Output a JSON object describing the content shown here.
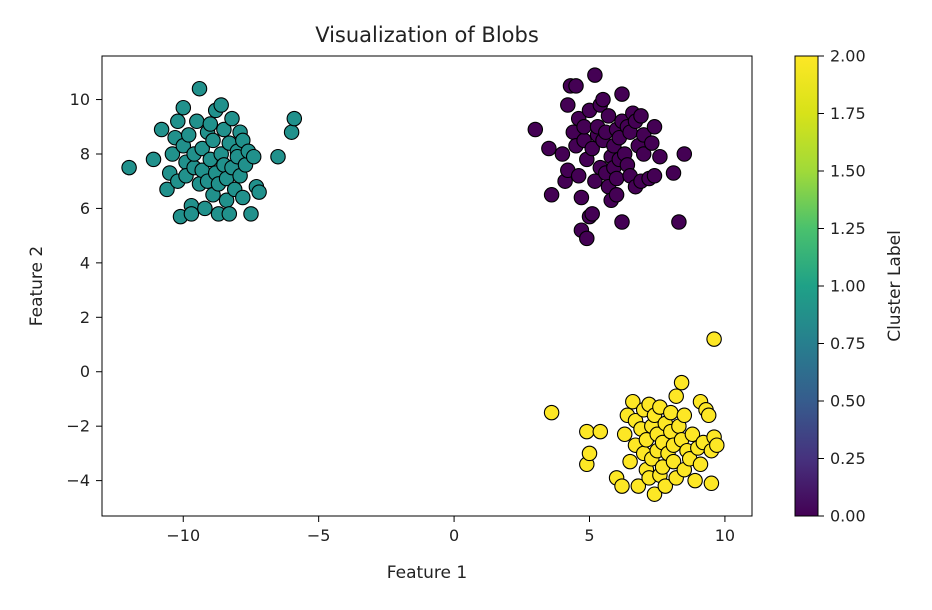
{
  "chart_data": {
    "type": "scatter",
    "title": "Visualization of Blobs",
    "xlabel": "Feature 1",
    "ylabel": "Feature 2",
    "xlim": [
      -13,
      11
    ],
    "ylim": [
      -5.3,
      11.6
    ],
    "x_ticks": [
      -10,
      -5,
      0,
      5,
      10
    ],
    "x_tick_labels": [
      "−10",
      "−5",
      "0",
      "5",
      "10"
    ],
    "y_ticks": [
      -4,
      -2,
      0,
      2,
      4,
      6,
      8,
      10
    ],
    "y_tick_labels": [
      "−4",
      "−2",
      "0",
      "2",
      "4",
      "6",
      "8",
      "10"
    ],
    "grid": false,
    "colormap": "viridis",
    "marker_edge_color": "#000000",
    "colorbar": {
      "label": "Cluster Label",
      "range": [
        0,
        2
      ],
      "ticks": [
        0,
        0.25,
        0.5,
        0.75,
        1.0,
        1.25,
        1.5,
        1.75,
        2.0
      ],
      "tick_labels": [
        "0.00",
        "0.25",
        "0.50",
        "0.75",
        "1.00",
        "1.25",
        "1.50",
        "1.75",
        "2.00"
      ]
    },
    "series": [
      {
        "cluster_label": 0,
        "color": "#440154",
        "points": [
          [
            3.0,
            8.9
          ],
          [
            3.5,
            8.2
          ],
          [
            3.6,
            6.5
          ],
          [
            4.0,
            8.0
          ],
          [
            4.1,
            7.0
          ],
          [
            4.2,
            7.4
          ],
          [
            4.2,
            9.8
          ],
          [
            4.3,
            10.5
          ],
          [
            4.4,
            8.8
          ],
          [
            4.5,
            10.5
          ],
          [
            4.5,
            8.3
          ],
          [
            4.6,
            9.3
          ],
          [
            4.6,
            7.2
          ],
          [
            4.7,
            6.4
          ],
          [
            4.7,
            5.2
          ],
          [
            4.8,
            8.5
          ],
          [
            4.8,
            9.0
          ],
          [
            4.9,
            7.8
          ],
          [
            4.9,
            4.9
          ],
          [
            5.0,
            5.7
          ],
          [
            5.0,
            9.6
          ],
          [
            5.1,
            5.8
          ],
          [
            5.1,
            8.2
          ],
          [
            5.2,
            7.0
          ],
          [
            5.2,
            10.9
          ],
          [
            5.3,
            8.7
          ],
          [
            5.3,
            9.0
          ],
          [
            5.4,
            7.5
          ],
          [
            5.4,
            9.8
          ],
          [
            5.5,
            8.5
          ],
          [
            5.5,
            10.0
          ],
          [
            5.6,
            7.3
          ],
          [
            5.6,
            8.8
          ],
          [
            5.7,
            6.8
          ],
          [
            5.7,
            9.4
          ],
          [
            5.8,
            7.9
          ],
          [
            5.8,
            6.3
          ],
          [
            5.9,
            8.3
          ],
          [
            5.9,
            7.5
          ],
          [
            6.0,
            8.9
          ],
          [
            6.0,
            7.1
          ],
          [
            6.0,
            6.5
          ],
          [
            6.1,
            7.8
          ],
          [
            6.1,
            8.6
          ],
          [
            6.2,
            9.2
          ],
          [
            6.2,
            10.2
          ],
          [
            6.2,
            5.5
          ],
          [
            6.3,
            8.0
          ],
          [
            6.4,
            7.6
          ],
          [
            6.4,
            9.0
          ],
          [
            6.5,
            8.8
          ],
          [
            6.5,
            7.2
          ],
          [
            6.6,
            9.5
          ],
          [
            6.7,
            6.8
          ],
          [
            6.7,
            9.2
          ],
          [
            6.8,
            8.3
          ],
          [
            6.9,
            7.0
          ],
          [
            6.9,
            9.4
          ],
          [
            7.0,
            8.0
          ],
          [
            7.0,
            8.7
          ],
          [
            7.2,
            7.1
          ],
          [
            7.3,
            8.4
          ],
          [
            7.4,
            7.2
          ],
          [
            7.4,
            9.0
          ],
          [
            7.6,
            7.9
          ],
          [
            8.1,
            7.3
          ],
          [
            8.3,
            5.5
          ],
          [
            8.5,
            8.0
          ]
        ]
      },
      {
        "cluster_label": 1,
        "color": "#21918c",
        "points": [
          [
            -12.0,
            7.5
          ],
          [
            -11.1,
            7.8
          ],
          [
            -10.8,
            8.9
          ],
          [
            -10.6,
            6.7
          ],
          [
            -10.5,
            7.3
          ],
          [
            -10.4,
            8.0
          ],
          [
            -10.3,
            8.6
          ],
          [
            -10.2,
            7.0
          ],
          [
            -10.2,
            9.2
          ],
          [
            -10.1,
            5.7
          ],
          [
            -10.0,
            9.7
          ],
          [
            -10.0,
            8.3
          ],
          [
            -9.9,
            7.7
          ],
          [
            -9.9,
            7.2
          ],
          [
            -9.8,
            8.7
          ],
          [
            -9.7,
            6.1
          ],
          [
            -9.7,
            5.8
          ],
          [
            -9.6,
            7.5
          ],
          [
            -9.6,
            8.0
          ],
          [
            -9.5,
            9.2
          ],
          [
            -9.4,
            10.4
          ],
          [
            -9.4,
            6.9
          ],
          [
            -9.3,
            8.2
          ],
          [
            -9.3,
            7.4
          ],
          [
            -9.2,
            6.0
          ],
          [
            -9.1,
            8.8
          ],
          [
            -9.1,
            7.0
          ],
          [
            -9.0,
            9.1
          ],
          [
            -9.0,
            7.8
          ],
          [
            -8.9,
            6.5
          ],
          [
            -8.9,
            8.5
          ],
          [
            -8.8,
            7.3
          ],
          [
            -8.8,
            9.6
          ],
          [
            -8.7,
            6.9
          ],
          [
            -8.7,
            5.8
          ],
          [
            -8.6,
            8.0
          ],
          [
            -8.6,
            9.8
          ],
          [
            -8.5,
            7.6
          ],
          [
            -8.5,
            8.9
          ],
          [
            -8.4,
            6.3
          ],
          [
            -8.4,
            7.1
          ],
          [
            -8.3,
            5.8
          ],
          [
            -8.3,
            8.4
          ],
          [
            -8.2,
            9.3
          ],
          [
            -8.2,
            7.5
          ],
          [
            -8.1,
            6.7
          ],
          [
            -8.0,
            8.1
          ],
          [
            -8.0,
            7.9
          ],
          [
            -7.9,
            7.2
          ],
          [
            -7.9,
            8.8
          ],
          [
            -7.8,
            6.4
          ],
          [
            -7.8,
            8.5
          ],
          [
            -7.7,
            7.6
          ],
          [
            -7.6,
            8.1
          ],
          [
            -7.5,
            5.8
          ],
          [
            -7.4,
            7.9
          ],
          [
            -7.3,
            6.8
          ],
          [
            -7.2,
            6.6
          ],
          [
            -6.5,
            7.9
          ],
          [
            -6.0,
            8.8
          ],
          [
            -5.9,
            9.3
          ]
        ]
      },
      {
        "cluster_label": 2,
        "color": "#fde725",
        "points": [
          [
            3.6,
            -1.5
          ],
          [
            4.9,
            -2.2
          ],
          [
            4.9,
            -3.4
          ],
          [
            5.0,
            -3.0
          ],
          [
            5.4,
            -2.2
          ],
          [
            6.0,
            -3.9
          ],
          [
            6.2,
            -4.2
          ],
          [
            6.3,
            -2.3
          ],
          [
            6.4,
            -1.6
          ],
          [
            6.5,
            -3.3
          ],
          [
            6.6,
            -1.1
          ],
          [
            6.7,
            -2.7
          ],
          [
            6.7,
            -1.8
          ],
          [
            6.8,
            -4.2
          ],
          [
            6.9,
            -2.1
          ],
          [
            7.0,
            -3.0
          ],
          [
            7.0,
            -1.4
          ],
          [
            7.1,
            -2.5
          ],
          [
            7.1,
            -3.6
          ],
          [
            7.2,
            -1.2
          ],
          [
            7.2,
            -3.9
          ],
          [
            7.3,
            -2.0
          ],
          [
            7.3,
            -3.2
          ],
          [
            7.4,
            -1.6
          ],
          [
            7.4,
            -4.5
          ],
          [
            7.5,
            -2.3
          ],
          [
            7.5,
            -2.9
          ],
          [
            7.6,
            -3.8
          ],
          [
            7.6,
            -1.3
          ],
          [
            7.7,
            -2.6
          ],
          [
            7.7,
            -3.5
          ],
          [
            7.8,
            -1.9
          ],
          [
            7.8,
            -4.2
          ],
          [
            7.9,
            -3.0
          ],
          [
            8.0,
            -2.2
          ],
          [
            8.0,
            -1.5
          ],
          [
            8.1,
            -3.3
          ],
          [
            8.1,
            -2.7
          ],
          [
            8.2,
            -0.9
          ],
          [
            8.2,
            -3.9
          ],
          [
            8.3,
            -2.0
          ],
          [
            8.4,
            -0.4
          ],
          [
            8.4,
            -2.5
          ],
          [
            8.5,
            -3.6
          ],
          [
            8.5,
            -1.6
          ],
          [
            8.6,
            -2.9
          ],
          [
            8.7,
            -3.2
          ],
          [
            8.8,
            -2.3
          ],
          [
            8.9,
            -4.0
          ],
          [
            9.0,
            -2.8
          ],
          [
            9.1,
            -1.1
          ],
          [
            9.1,
            -3.4
          ],
          [
            9.2,
            -2.6
          ],
          [
            9.3,
            -1.4
          ],
          [
            9.4,
            -1.6
          ],
          [
            9.5,
            -2.9
          ],
          [
            9.5,
            -4.1
          ],
          [
            9.6,
            -2.4
          ],
          [
            9.6,
            1.2
          ],
          [
            9.7,
            -2.7
          ]
        ]
      }
    ]
  }
}
